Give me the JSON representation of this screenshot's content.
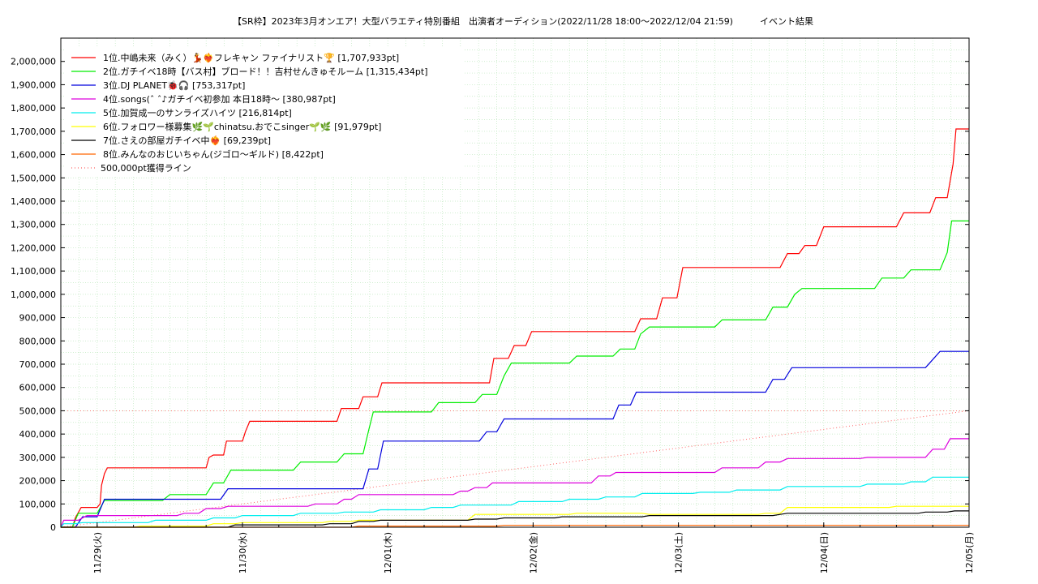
{
  "chart_data": {
    "type": "line",
    "title": "【SR枠】2023年3月オンエア！大型バラエティ特別番組　出演者オーディション(2022/11/28 18:00〜2022/12/04 21:59)　　　イベント結果",
    "xlabel": "",
    "ylabel": "",
    "ylim": [
      0,
      2100000
    ],
    "xlim": [
      0,
      6.25
    ],
    "grid": true,
    "legend_position": "top-left",
    "y_ticks": [
      {
        "v": 0,
        "label": "0"
      },
      {
        "v": 100000,
        "label": "100,000"
      },
      {
        "v": 200000,
        "label": "200,000"
      },
      {
        "v": 300000,
        "label": "300,000"
      },
      {
        "v": 400000,
        "label": "400,000"
      },
      {
        "v": 500000,
        "label": "500,000"
      },
      {
        "v": 600000,
        "label": "600,000"
      },
      {
        "v": 700000,
        "label": "700,000"
      },
      {
        "v": 800000,
        "label": "800,000"
      },
      {
        "v": 900000,
        "label": "900,000"
      },
      {
        "v": 1000000,
        "label": "1,000,000"
      },
      {
        "v": 1100000,
        "label": "1,100,000"
      },
      {
        "v": 1200000,
        "label": "1,200,000"
      },
      {
        "v": 1300000,
        "label": "1,300,000"
      },
      {
        "v": 1400000,
        "label": "1,400,000"
      },
      {
        "v": 1500000,
        "label": "1,500,000"
      },
      {
        "v": 1600000,
        "label": "1,600,000"
      },
      {
        "v": 1700000,
        "label": "1,700,000"
      },
      {
        "v": 1800000,
        "label": "1,800,000"
      },
      {
        "v": 1900000,
        "label": "1,900,000"
      },
      {
        "v": 2000000,
        "label": "2,000,000"
      }
    ],
    "x_ticks": [
      {
        "v": 0.25,
        "label": "11/29(火)"
      },
      {
        "v": 1.25,
        "label": "11/30(水)"
      },
      {
        "v": 2.25,
        "label": "12/01(木)"
      },
      {
        "v": 3.25,
        "label": "12/02(金)"
      },
      {
        "v": 4.25,
        "label": "12/03(土)"
      },
      {
        "v": 5.25,
        "label": "12/04(日)"
      },
      {
        "v": 6.25,
        "label": "12/05(月)"
      }
    ],
    "series": [
      {
        "name": "1位.中嶋未来（みく）💃❤️‍🔥フレキャン ファイナリスト🏆 [1,707,933pt]",
        "color": "#ff0000",
        "points": [
          [
            0,
            0
          ],
          [
            0.08,
            0
          ],
          [
            0.1,
            40000
          ],
          [
            0.14,
            85000
          ],
          [
            0.25,
            85000
          ],
          [
            0.27,
            100000
          ],
          [
            0.28,
            180000
          ],
          [
            0.3,
            230000
          ],
          [
            0.32,
            255000
          ],
          [
            1.0,
            255000
          ],
          [
            1.02,
            300000
          ],
          [
            1.05,
            310000
          ],
          [
            1.12,
            310000
          ],
          [
            1.14,
            370000
          ],
          [
            1.25,
            370000
          ],
          [
            1.27,
            410000
          ],
          [
            1.3,
            455000
          ],
          [
            1.9,
            455000
          ],
          [
            1.93,
            510000
          ],
          [
            2.05,
            510000
          ],
          [
            2.08,
            560000
          ],
          [
            2.18,
            560000
          ],
          [
            2.21,
            620000
          ],
          [
            2.95,
            620000
          ],
          [
            2.98,
            725000
          ],
          [
            3.08,
            725000
          ],
          [
            3.12,
            780000
          ],
          [
            3.2,
            780000
          ],
          [
            3.24,
            840000
          ],
          [
            3.95,
            840000
          ],
          [
            3.99,
            895000
          ],
          [
            4.1,
            895000
          ],
          [
            4.14,
            985000
          ],
          [
            4.24,
            985000
          ],
          [
            4.28,
            1115000
          ],
          [
            4.95,
            1115000
          ],
          [
            5.0,
            1175000
          ],
          [
            5.08,
            1175000
          ],
          [
            5.12,
            1210000
          ],
          [
            5.2,
            1210000
          ],
          [
            5.25,
            1290000
          ],
          [
            5.75,
            1290000
          ],
          [
            5.8,
            1350000
          ],
          [
            5.98,
            1350000
          ],
          [
            6.02,
            1415000
          ],
          [
            6.1,
            1415000
          ],
          [
            6.14,
            1560000
          ],
          [
            6.16,
            1710000
          ],
          [
            6.25,
            1710000
          ]
        ]
      },
      {
        "name": "2位.ガチイベ18時【バス村】ブロード！！吉村せんきゅそルーム [1,315,434pt]",
        "color": "#00ee00",
        "points": [
          [
            0,
            0
          ],
          [
            0.08,
            0
          ],
          [
            0.12,
            60000
          ],
          [
            0.25,
            60000
          ],
          [
            0.3,
            115000
          ],
          [
            0.7,
            115000
          ],
          [
            0.75,
            140000
          ],
          [
            1.0,
            140000
          ],
          [
            1.05,
            190000
          ],
          [
            1.12,
            190000
          ],
          [
            1.17,
            245000
          ],
          [
            1.6,
            245000
          ],
          [
            1.65,
            280000
          ],
          [
            1.9,
            280000
          ],
          [
            1.95,
            315000
          ],
          [
            2.08,
            315000
          ],
          [
            2.12,
            420000
          ],
          [
            2.15,
            495000
          ],
          [
            2.55,
            495000
          ],
          [
            2.6,
            535000
          ],
          [
            2.85,
            535000
          ],
          [
            2.9,
            570000
          ],
          [
            3.0,
            570000
          ],
          [
            3.05,
            650000
          ],
          [
            3.1,
            705000
          ],
          [
            3.5,
            705000
          ],
          [
            3.55,
            735000
          ],
          [
            3.8,
            735000
          ],
          [
            3.85,
            765000
          ],
          [
            3.95,
            765000
          ],
          [
            3.99,
            830000
          ],
          [
            4.05,
            860000
          ],
          [
            4.5,
            860000
          ],
          [
            4.55,
            890000
          ],
          [
            4.85,
            890000
          ],
          [
            4.9,
            945000
          ],
          [
            5.0,
            945000
          ],
          [
            5.05,
            1000000
          ],
          [
            5.1,
            1025000
          ],
          [
            5.6,
            1025000
          ],
          [
            5.65,
            1070000
          ],
          [
            5.8,
            1070000
          ],
          [
            5.85,
            1105000
          ],
          [
            6.05,
            1105000
          ],
          [
            6.1,
            1180000
          ],
          [
            6.13,
            1315000
          ],
          [
            6.25,
            1315000
          ]
        ]
      },
      {
        "name": "3位.DJ PLANET🐞🎧 [753,317pt]",
        "color": "#0000dd",
        "points": [
          [
            0,
            0
          ],
          [
            0.1,
            0
          ],
          [
            0.15,
            45000
          ],
          [
            0.25,
            45000
          ],
          [
            0.3,
            120000
          ],
          [
            1.1,
            120000
          ],
          [
            1.15,
            165000
          ],
          [
            1.9,
            165000
          ],
          [
            1.95,
            165000
          ],
          [
            2.08,
            165000
          ],
          [
            2.12,
            250000
          ],
          [
            2.18,
            250000
          ],
          [
            2.22,
            370000
          ],
          [
            2.88,
            370000
          ],
          [
            2.93,
            410000
          ],
          [
            3.0,
            410000
          ],
          [
            3.05,
            465000
          ],
          [
            3.8,
            465000
          ],
          [
            3.84,
            525000
          ],
          [
            3.92,
            525000
          ],
          [
            3.96,
            580000
          ],
          [
            4.85,
            580000
          ],
          [
            4.9,
            635000
          ],
          [
            4.98,
            635000
          ],
          [
            5.03,
            685000
          ],
          [
            5.95,
            685000
          ],
          [
            6.0,
            720000
          ],
          [
            6.05,
            755000
          ],
          [
            6.25,
            755000
          ]
        ]
      },
      {
        "name": "4位.songs(ˆ ˆ♪ガチイベ初参加 本日18時〜 [380,987pt]",
        "color": "#dd00dd",
        "points": [
          [
            0,
            0
          ],
          [
            0.02,
            30000
          ],
          [
            0.12,
            30000
          ],
          [
            0.18,
            50000
          ],
          [
            0.8,
            50000
          ],
          [
            0.85,
            60000
          ],
          [
            0.95,
            60000
          ],
          [
            1.0,
            80000
          ],
          [
            1.1,
            80000
          ],
          [
            1.15,
            90000
          ],
          [
            1.7,
            90000
          ],
          [
            1.75,
            100000
          ],
          [
            1.9,
            100000
          ],
          [
            1.95,
            120000
          ],
          [
            2.0,
            120000
          ],
          [
            2.05,
            140000
          ],
          [
            2.7,
            140000
          ],
          [
            2.75,
            155000
          ],
          [
            2.8,
            155000
          ],
          [
            2.85,
            170000
          ],
          [
            2.93,
            170000
          ],
          [
            2.97,
            190000
          ],
          [
            3.65,
            190000
          ],
          [
            3.7,
            220000
          ],
          [
            3.78,
            220000
          ],
          [
            3.82,
            235000
          ],
          [
            4.5,
            235000
          ],
          [
            4.55,
            255000
          ],
          [
            4.8,
            255000
          ],
          [
            4.85,
            280000
          ],
          [
            4.95,
            280000
          ],
          [
            5.0,
            295000
          ],
          [
            5.5,
            295000
          ],
          [
            5.55,
            300000
          ],
          [
            5.95,
            300000
          ],
          [
            6.0,
            335000
          ],
          [
            6.08,
            335000
          ],
          [
            6.12,
            380000
          ],
          [
            6.25,
            380000
          ]
        ]
      },
      {
        "name": "5位.加賀成一のサンライズハイツ [216,814pt]",
        "color": "#00eeee",
        "points": [
          [
            0,
            0
          ],
          [
            0.02,
            15000
          ],
          [
            0.1,
            15000
          ],
          [
            0.15,
            20000
          ],
          [
            0.6,
            20000
          ],
          [
            0.65,
            30000
          ],
          [
            1.0,
            30000
          ],
          [
            1.05,
            40000
          ],
          [
            1.2,
            40000
          ],
          [
            1.25,
            50000
          ],
          [
            1.6,
            50000
          ],
          [
            1.65,
            60000
          ],
          [
            1.9,
            60000
          ],
          [
            1.95,
            65000
          ],
          [
            2.15,
            65000
          ],
          [
            2.2,
            75000
          ],
          [
            2.5,
            75000
          ],
          [
            2.55,
            85000
          ],
          [
            2.7,
            85000
          ],
          [
            2.75,
            95000
          ],
          [
            3.1,
            95000
          ],
          [
            3.15,
            110000
          ],
          [
            3.45,
            110000
          ],
          [
            3.5,
            120000
          ],
          [
            3.7,
            120000
          ],
          [
            3.75,
            130000
          ],
          [
            3.95,
            130000
          ],
          [
            4.0,
            145000
          ],
          [
            4.35,
            145000
          ],
          [
            4.4,
            150000
          ],
          [
            4.6,
            150000
          ],
          [
            4.65,
            160000
          ],
          [
            4.95,
            160000
          ],
          [
            5.0,
            175000
          ],
          [
            5.5,
            175000
          ],
          [
            5.55,
            185000
          ],
          [
            5.8,
            185000
          ],
          [
            5.85,
            195000
          ],
          [
            5.95,
            195000
          ],
          [
            6.0,
            215000
          ],
          [
            6.25,
            215000
          ]
        ]
      },
      {
        "name": "6位.フォロワー様募集🌿🌱chinatsu.おでこsinger🌱🌿 [91,979pt]",
        "color": "#ffff00",
        "points": [
          [
            0,
            0
          ],
          [
            0.5,
            0
          ],
          [
            0.55,
            5000
          ],
          [
            1.0,
            5000
          ],
          [
            1.05,
            15000
          ],
          [
            1.2,
            15000
          ],
          [
            1.25,
            20000
          ],
          [
            1.8,
            20000
          ],
          [
            1.85,
            25000
          ],
          [
            2.0,
            25000
          ],
          [
            2.05,
            30000
          ],
          [
            2.8,
            30000
          ],
          [
            2.85,
            55000
          ],
          [
            3.5,
            55000
          ],
          [
            3.55,
            60000
          ],
          [
            4.0,
            60000
          ],
          [
            4.05,
            55000
          ],
          [
            4.8,
            55000
          ],
          [
            4.85,
            60000
          ],
          [
            4.95,
            60000
          ],
          [
            5.0,
            85000
          ],
          [
            5.7,
            85000
          ],
          [
            5.75,
            90000
          ],
          [
            6.25,
            90000
          ]
        ]
      },
      {
        "name": "7位.さえの部屋ガチイベ中❤️‍🔥 [69,239pt]",
        "color": "#000000",
        "points": [
          [
            0,
            0
          ],
          [
            1.15,
            0
          ],
          [
            1.2,
            10000
          ],
          [
            1.8,
            10000
          ],
          [
            1.85,
            15000
          ],
          [
            2.0,
            15000
          ],
          [
            2.05,
            25000
          ],
          [
            2.15,
            25000
          ],
          [
            2.2,
            30000
          ],
          [
            2.8,
            30000
          ],
          [
            2.85,
            35000
          ],
          [
            3.0,
            35000
          ],
          [
            3.05,
            40000
          ],
          [
            3.4,
            40000
          ],
          [
            3.45,
            45000
          ],
          [
            4.0,
            45000
          ],
          [
            4.05,
            50000
          ],
          [
            4.9,
            50000
          ],
          [
            4.95,
            55000
          ],
          [
            5.0,
            60000
          ],
          [
            5.9,
            60000
          ],
          [
            5.95,
            65000
          ],
          [
            6.1,
            65000
          ],
          [
            6.15,
            70000
          ],
          [
            6.25,
            70000
          ]
        ]
      },
      {
        "name": "8位.みんなのおじいちゃん(ジゴロ〜ギルド) [8,422pt]",
        "color": "#ff6600",
        "points": [
          [
            0,
            0
          ],
          [
            2.0,
            0
          ],
          [
            2.05,
            5000
          ],
          [
            3.0,
            5000
          ],
          [
            3.05,
            8000
          ],
          [
            6.25,
            8000
          ]
        ]
      },
      {
        "name": "500,000pt獲得ライン",
        "color": "#ff6666",
        "dashed": true,
        "points": [
          [
            0,
            0
          ],
          [
            6.25,
            500000
          ]
        ]
      }
    ]
  }
}
